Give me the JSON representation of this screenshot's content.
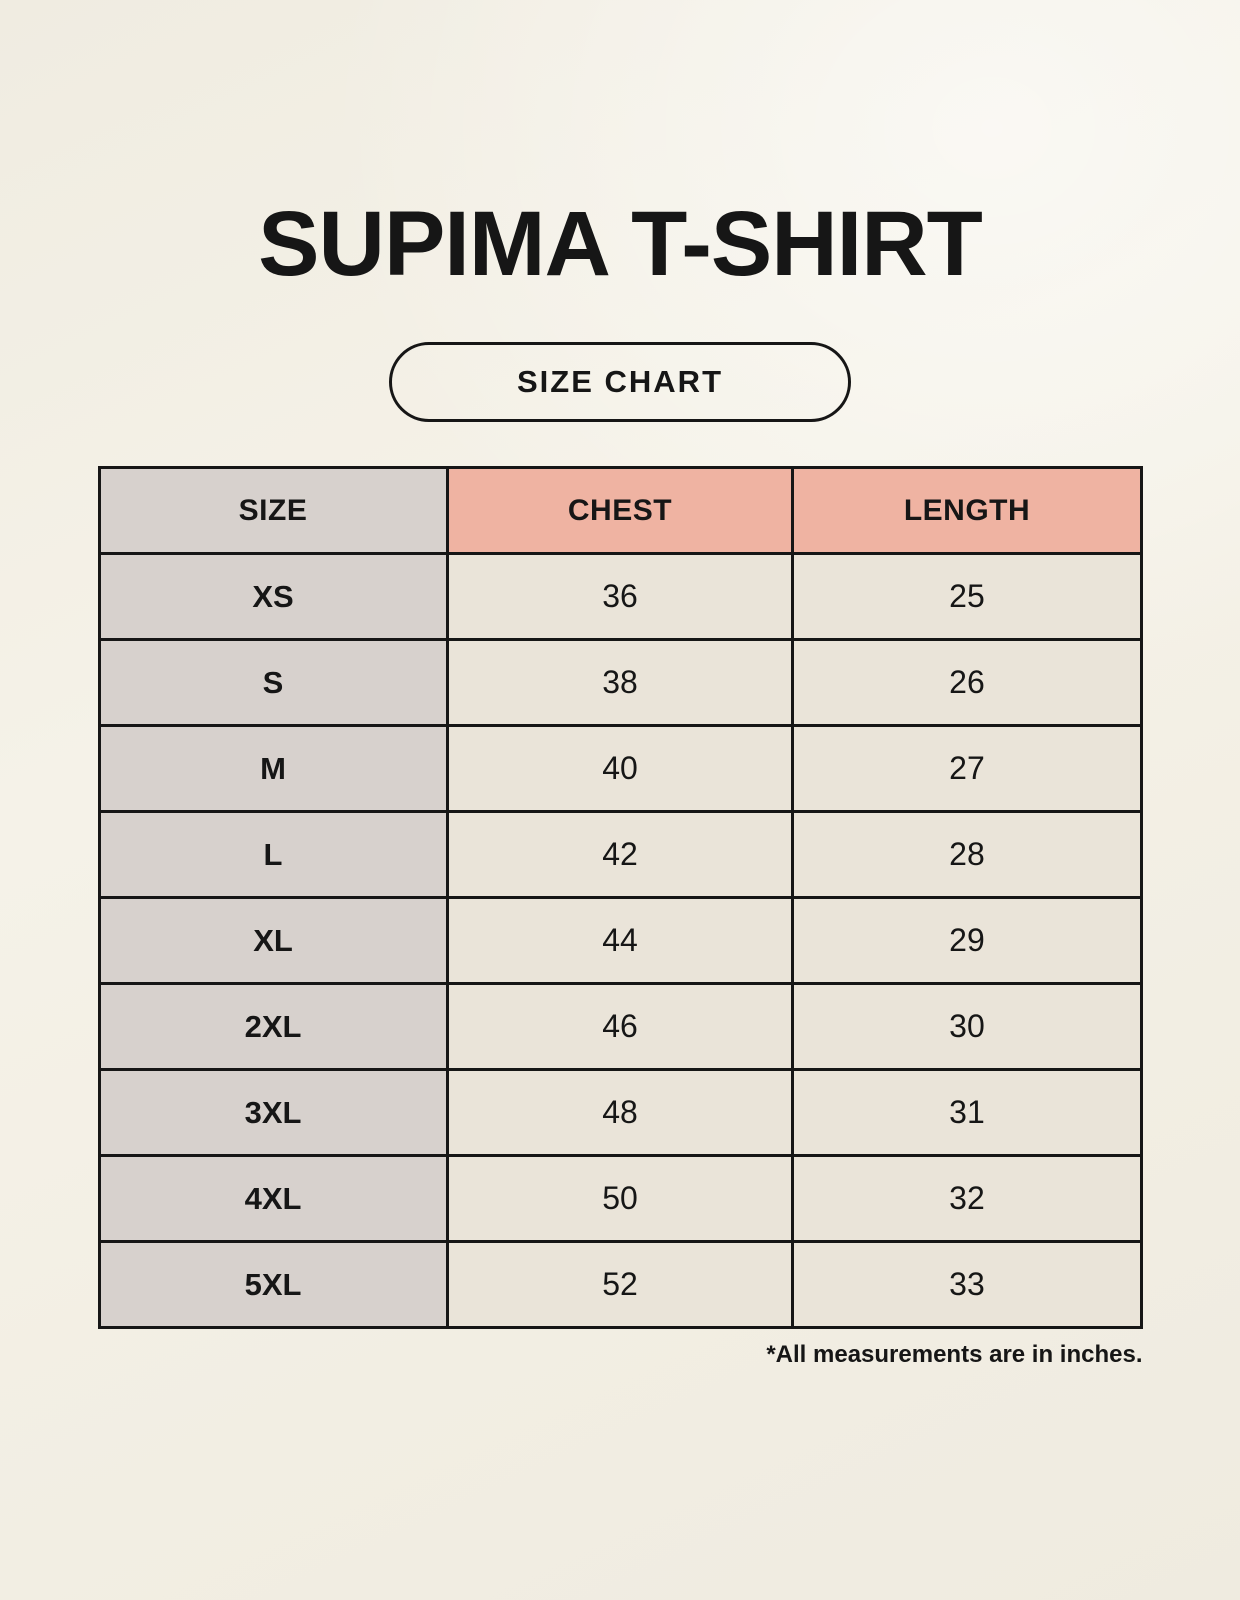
{
  "title": "SUPIMA T-SHIRT",
  "badge_label": "SIZE CHART",
  "footnote": "*All measurements are in inches.",
  "colors": {
    "background": "#f5f2e8",
    "size_column": "#d7d1cd",
    "header_accent": "#efb3a2",
    "value_cell": "#eae4d9",
    "border": "#161616",
    "text": "#161616"
  },
  "chart_data": {
    "type": "table",
    "title": "SUPIMA T-SHIRT",
    "columns": [
      "SIZE",
      "CHEST",
      "LENGTH"
    ],
    "rows": [
      [
        "XS",
        "36",
        "25"
      ],
      [
        "S",
        "38",
        "26"
      ],
      [
        "M",
        "40",
        "27"
      ],
      [
        "L",
        "42",
        "28"
      ],
      [
        "XL",
        "44",
        "29"
      ],
      [
        "2XL",
        "46",
        "30"
      ],
      [
        "3XL",
        "48",
        "31"
      ],
      [
        "4XL",
        "50",
        "32"
      ],
      [
        "5XL",
        "52",
        "33"
      ]
    ]
  }
}
